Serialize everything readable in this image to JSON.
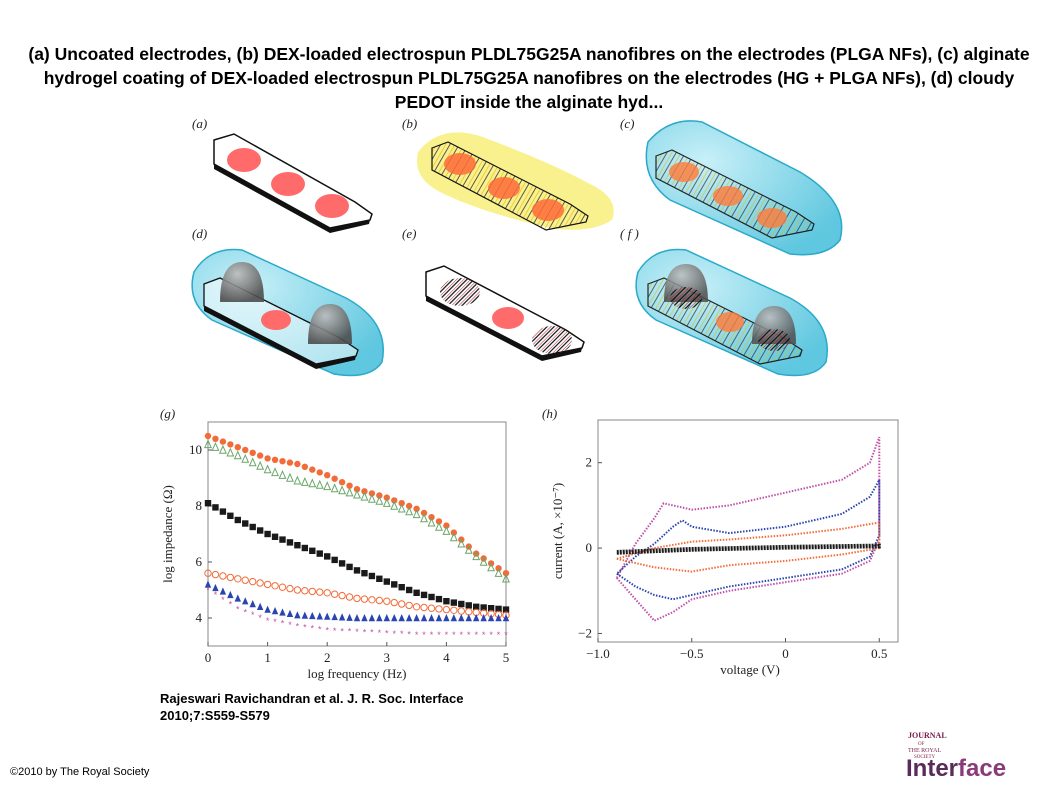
{
  "title": "(a) Uncoated electrodes, (b) DEX-loaded electrospun PLDL75G25A nanofibres on the electrodes (PLGA NFs), (c) alginate hydrogel coating of DEX-loaded electrospun PLDL75G25A nanofibres on the electrodes (HG + PLGA NFs), (d) cloudy PEDOT inside the alginate hyd...",
  "panels": {
    "a": "(a)",
    "b": "(b)",
    "c": "(c)",
    "d": "(d)",
    "e": "(e)",
    "f": "( f )",
    "g": "(g)",
    "h": "(h)"
  },
  "citation": {
    "line1": "Rajeswari Ravichandran et al. J. R. Soc. Interface",
    "line2": "2010;7:S559-S579"
  },
  "copyright": "©2010 by The Royal Society",
  "logo": {
    "journal": "JOURNAL",
    "of": "OF",
    "the_royal": "THE ROYAL",
    "society": "SOCIETY",
    "word1": "Inter",
    "word2": "face"
  },
  "colors": {
    "pink": "#ff6b6b",
    "yellow": "#f5e13c",
    "hydrogel": "#7fd3e6",
    "hydrogel_edge": "#2aa9c9",
    "orange": "#f26c3a",
    "green": "#6aa66a",
    "black_series": "#1a1a1a",
    "blue": "#2a44b0",
    "magenta": "#c050a8"
  },
  "chart_data": [
    {
      "type": "scatter",
      "panel": "g",
      "xlabel": "log frequency (Hz)",
      "ylabel": "log impedance (Ω)",
      "xlim": [
        0,
        5
      ],
      "ylim": [
        3,
        11
      ],
      "xticks": [
        0,
        1,
        2,
        3,
        4,
        5
      ],
      "yticks": [
        4,
        6,
        8,
        10
      ],
      "series": [
        {
          "marker": "filled-circle",
          "color": "#f26c3a",
          "x": [
            0,
            0.5,
            1,
            1.5,
            2,
            2.5,
            3,
            3.5,
            4,
            4.5,
            5
          ],
          "y": [
            10.5,
            10.1,
            9.7,
            9.5,
            9.1,
            8.6,
            8.3,
            7.9,
            7.3,
            6.3,
            5.6
          ]
        },
        {
          "marker": "open-triangle",
          "color": "#6aa66a",
          "x": [
            0,
            0.5,
            1,
            1.5,
            2,
            2.5,
            3,
            3.5,
            4,
            4.5,
            5
          ],
          "y": [
            10.2,
            9.8,
            9.3,
            8.9,
            8.7,
            8.4,
            8.1,
            7.7,
            7.1,
            6.2,
            5.4
          ]
        },
        {
          "marker": "filled-square",
          "color": "#1a1a1a",
          "x": [
            0,
            0.5,
            1,
            1.5,
            2,
            2.5,
            3,
            3.5,
            4,
            4.5,
            5
          ],
          "y": [
            8.1,
            7.5,
            7.0,
            6.6,
            6.2,
            5.7,
            5.3,
            4.9,
            4.6,
            4.4,
            4.3
          ]
        },
        {
          "marker": "open-circle",
          "color": "#f26c3a",
          "x": [
            0,
            0.5,
            1,
            1.5,
            2,
            2.5,
            3,
            3.5,
            4,
            4.5,
            5
          ],
          "y": [
            5.6,
            5.4,
            5.2,
            5.0,
            4.9,
            4.7,
            4.6,
            4.4,
            4.3,
            4.2,
            4.1
          ]
        },
        {
          "marker": "filled-triangle",
          "color": "#2a44b0",
          "x": [
            0,
            0.5,
            1,
            1.5,
            2,
            2.5,
            3,
            3.5,
            4,
            4.5,
            5
          ],
          "y": [
            5.2,
            4.7,
            4.3,
            4.1,
            4.05,
            4.0,
            4.0,
            4.0,
            4.0,
            4.0,
            4.0
          ]
        },
        {
          "marker": "star",
          "color": "#c050a8",
          "x": [
            0,
            0.5,
            1,
            1.5,
            2,
            2.5,
            3,
            3.5,
            4,
            4.5,
            5
          ],
          "y": [
            5.0,
            4.3,
            3.9,
            3.7,
            3.55,
            3.5,
            3.45,
            3.4,
            3.4,
            3.4,
            3.4
          ]
        }
      ]
    },
    {
      "type": "line",
      "panel": "h",
      "xlabel": "voltage (V)",
      "ylabel": "current (A, ×10⁻⁷)",
      "xlim": [
        -1.0,
        0.6
      ],
      "ylim": [
        -2.2,
        3.0
      ],
      "xticks": [
        -1.0,
        -0.5,
        0,
        0.5
      ],
      "xtick_labels": [
        "−1.0",
        "−0.5",
        "0",
        "0.5"
      ],
      "yticks": [
        -2,
        0,
        2
      ],
      "yticklabels": [
        "−2",
        "0",
        "2"
      ],
      "series": [
        {
          "color": "#c050a8",
          "x": [
            -0.9,
            -0.8,
            -0.7,
            -0.6,
            -0.5,
            -0.3,
            0,
            0.3,
            0.45,
            0.5,
            0.5,
            0.45,
            0.3,
            0,
            -0.3,
            -0.5,
            -0.6,
            -0.65,
            -0.7,
            -0.8,
            -0.9
          ],
          "y": [
            -0.7,
            -1.2,
            -1.7,
            -1.5,
            -1.2,
            -1.0,
            -0.8,
            -0.6,
            -0.3,
            0.2,
            2.6,
            2.0,
            1.6,
            1.3,
            1.0,
            0.9,
            1.0,
            1.05,
            0.7,
            0.1,
            -0.7
          ]
        },
        {
          "color": "#2a44b0",
          "x": [
            -0.9,
            -0.8,
            -0.7,
            -0.6,
            -0.5,
            -0.3,
            0,
            0.3,
            0.45,
            0.5,
            0.5,
            0.45,
            0.3,
            0,
            -0.3,
            -0.5,
            -0.55,
            -0.6,
            -0.7,
            -0.8,
            -0.9
          ],
          "y": [
            -0.6,
            -0.9,
            -1.1,
            -1.2,
            -1.1,
            -0.9,
            -0.7,
            -0.5,
            -0.2,
            0.3,
            1.6,
            1.2,
            0.8,
            0.5,
            0.35,
            0.5,
            0.65,
            0.5,
            0.1,
            -0.2,
            -0.6
          ]
        },
        {
          "color": "#f26c3a",
          "x": [
            -0.9,
            -0.7,
            -0.5,
            -0.3,
            0,
            0.3,
            0.5,
            0.5,
            0.3,
            0,
            -0.3,
            -0.5,
            -0.7,
            -0.9
          ],
          "y": [
            -0.25,
            -0.45,
            -0.55,
            -0.4,
            -0.3,
            -0.15,
            0.0,
            0.6,
            0.45,
            0.3,
            0.2,
            0.15,
            0.0,
            -0.25
          ]
        },
        {
          "color": "#1a1a1a",
          "x": [
            -0.9,
            -0.5,
            0,
            0.5,
            0.5,
            0,
            -0.5,
            -0.9
          ],
          "y": [
            -0.12,
            -0.05,
            0.0,
            0.03,
            0.07,
            0.04,
            -0.01,
            -0.08
          ]
        }
      ]
    }
  ]
}
